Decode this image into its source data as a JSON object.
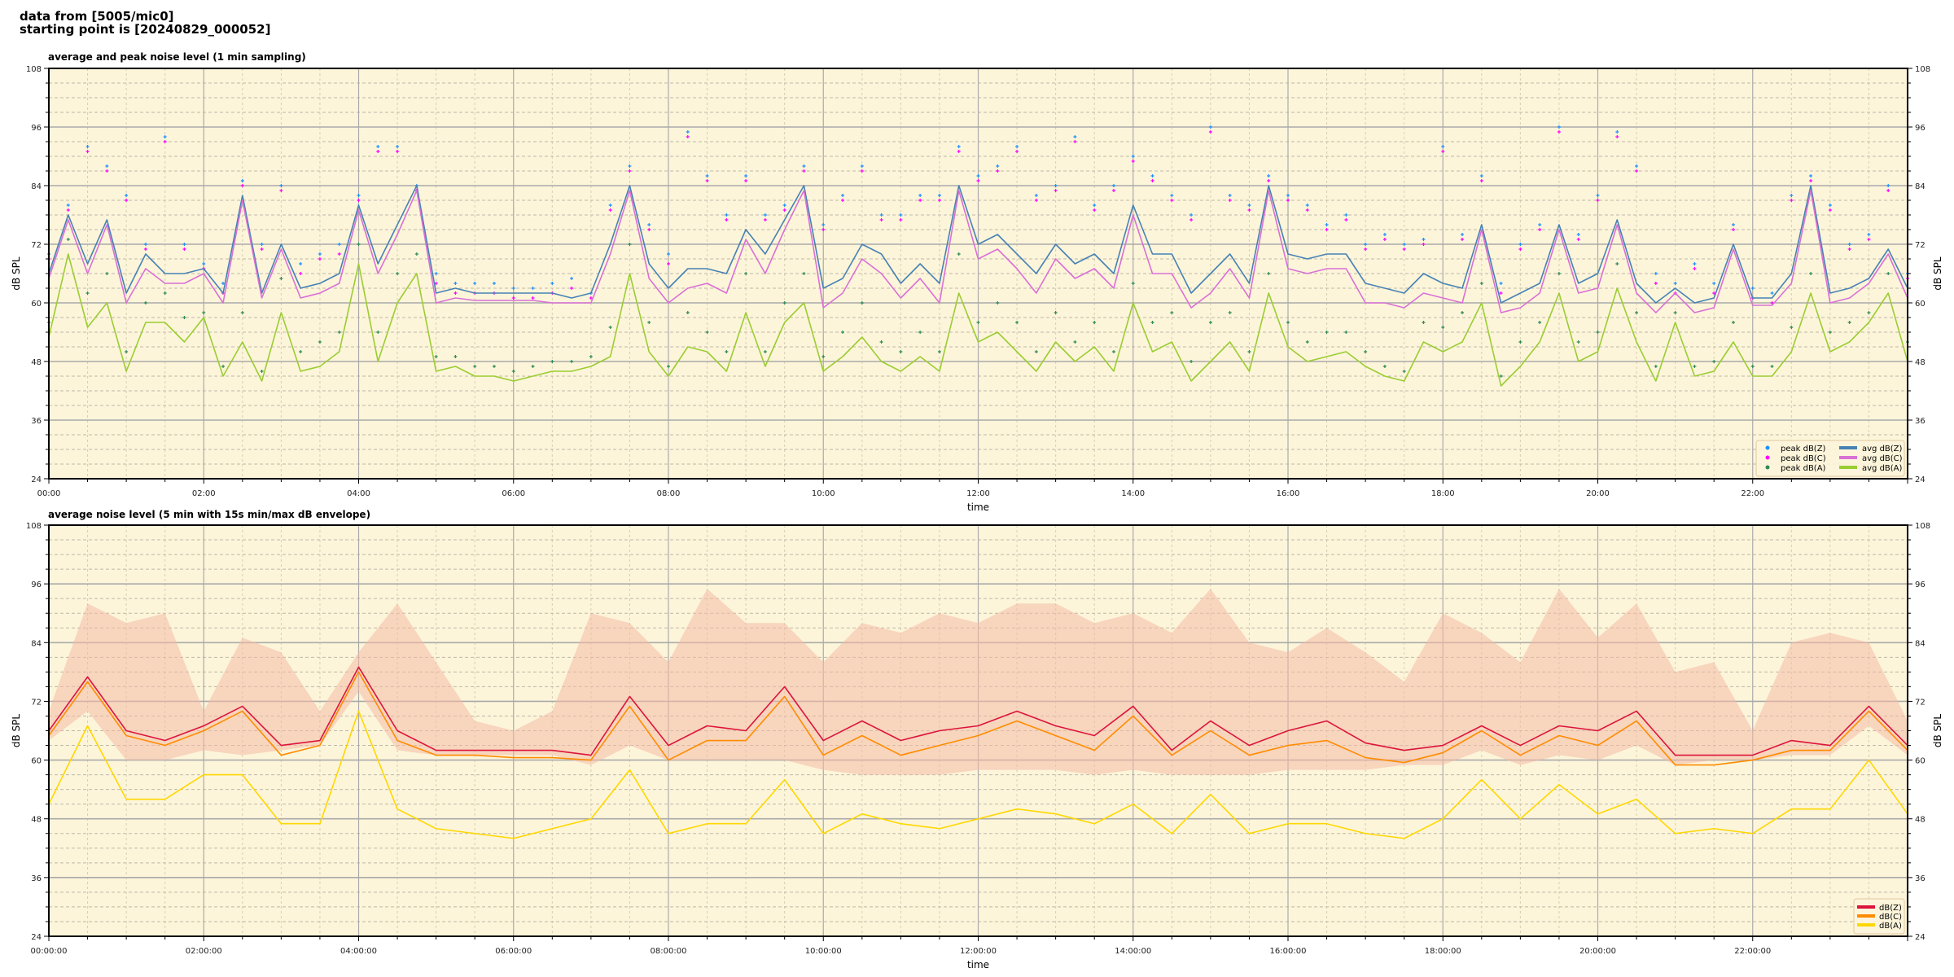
{
  "header": {
    "line1": "data from [5005/mic0]",
    "line2": "starting point is [20240829_000052]"
  },
  "chart_data": [
    {
      "type": "line",
      "title": "average and peak noise level (1 min sampling)",
      "xlabel": "time",
      "ylabel": "dB SPL",
      "ylim": [
        24,
        108
      ],
      "xlim": [
        "00:00",
        "24:00"
      ],
      "grid": true,
      "background": "#fdf5da",
      "legend_position": "bottom-right",
      "y_ticks": [
        "24",
        "36",
        "48",
        "60",
        "72",
        "84",
        "96",
        "108"
      ],
      "x_ticks": [
        "00:00",
        "02:00",
        "04:00",
        "06:00",
        "08:00",
        "10:00",
        "12:00",
        "14:00",
        "16:00",
        "18:00",
        "20:00",
        "22:00"
      ],
      "x": [
        "00:00",
        "00:15",
        "00:30",
        "00:45",
        "01:00",
        "01:15",
        "01:30",
        "01:45",
        "02:00",
        "02:15",
        "02:30",
        "02:45",
        "03:00",
        "03:15",
        "03:30",
        "03:45",
        "04:00",
        "04:15",
        "04:30",
        "04:45",
        "05:00",
        "05:15",
        "05:30",
        "05:45",
        "06:00",
        "06:15",
        "06:30",
        "06:45",
        "07:00",
        "07:15",
        "07:30",
        "07:45",
        "08:00",
        "08:15",
        "08:30",
        "08:45",
        "09:00",
        "09:15",
        "09:30",
        "09:45",
        "10:00",
        "10:15",
        "10:30",
        "10:45",
        "11:00",
        "11:15",
        "11:30",
        "11:45",
        "12:00",
        "12:15",
        "12:30",
        "12:45",
        "13:00",
        "13:15",
        "13:30",
        "13:45",
        "14:00",
        "14:15",
        "14:30",
        "14:45",
        "15:00",
        "15:15",
        "15:30",
        "15:45",
        "16:00",
        "16:15",
        "16:30",
        "16:45",
        "17:00",
        "17:15",
        "17:30",
        "17:45",
        "18:00",
        "18:15",
        "18:30",
        "18:45",
        "19:00",
        "19:15",
        "19:30",
        "19:45",
        "20:00",
        "20:15",
        "20:30",
        "20:45",
        "21:00",
        "21:15",
        "21:30",
        "21:45",
        "22:00",
        "22:15",
        "22:30",
        "22:45",
        "23:00",
        "23:15",
        "23:30",
        "23:45",
        "24:00"
      ],
      "series": [
        {
          "name": "peak dB(Z)",
          "kind": "marker",
          "color": "#1e90ff",
          "values": [
            70,
            80,
            92,
            88,
            82,
            72,
            94,
            72,
            68,
            64,
            85,
            72,
            84,
            68,
            70,
            72,
            82,
            92,
            92,
            84,
            66,
            64,
            64,
            64,
            63,
            63,
            64,
            65,
            62,
            80,
            88,
            76,
            70,
            95,
            86,
            78,
            86,
            78,
            80,
            88,
            76,
            82,
            88,
            78,
            78,
            82,
            82,
            92,
            86,
            88,
            92,
            82,
            84,
            94,
            80,
            84,
            90,
            86,
            82,
            78,
            96,
            82,
            80,
            86,
            82,
            80,
            76,
            78,
            72,
            74,
            72,
            73,
            92,
            74,
            86,
            64,
            72,
            76,
            96,
            74,
            82,
            95,
            88,
            66,
            64,
            68,
            64,
            76,
            63,
            62,
            82,
            86,
            80,
            72,
            74,
            84,
            66
          ]
        },
        {
          "name": "peak dB(C)",
          "kind": "marker",
          "color": "#ff00ff",
          "values": [
            69,
            79,
            91,
            87,
            81,
            71,
            93,
            71,
            67,
            62,
            84,
            71,
            83,
            66,
            69,
            70,
            81,
            91,
            91,
            83,
            64,
            62,
            62,
            62,
            61,
            61,
            62,
            63,
            61,
            79,
            87,
            75,
            68,
            94,
            85,
            77,
            85,
            77,
            79,
            87,
            75,
            81,
            87,
            77,
            77,
            81,
            81,
            91,
            85,
            87,
            91,
            81,
            83,
            93,
            79,
            83,
            89,
            85,
            81,
            77,
            95,
            81,
            79,
            85,
            81,
            79,
            75,
            77,
            71,
            73,
            71,
            72,
            91,
            73,
            85,
            62,
            71,
            75,
            95,
            73,
            81,
            94,
            87,
            64,
            62,
            67,
            62,
            75,
            61,
            60,
            81,
            85,
            79,
            71,
            73,
            83,
            65
          ]
        },
        {
          "name": "peak dB(A)",
          "kind": "marker",
          "color": "#2e8b57",
          "values": [
            56,
            73,
            62,
            66,
            50,
            60,
            62,
            57,
            58,
            47,
            58,
            46,
            65,
            50,
            52,
            54,
            72,
            54,
            66,
            70,
            49,
            49,
            47,
            47,
            46,
            47,
            48,
            48,
            49,
            55,
            72,
            56,
            47,
            58,
            54,
            50,
            66,
            50,
            60,
            66,
            49,
            54,
            60,
            52,
            50,
            54,
            50,
            70,
            56,
            60,
            56,
            50,
            58,
            52,
            56,
            50,
            64,
            56,
            58,
            48,
            56,
            58,
            50,
            66,
            56,
            52,
            54,
            54,
            50,
            47,
            46,
            56,
            55,
            58,
            64,
            45,
            52,
            56,
            66,
            52,
            54,
            68,
            58,
            47,
            58,
            47,
            48,
            56,
            47,
            47,
            55,
            66,
            54,
            56,
            58,
            66,
            52
          ]
        },
        {
          "name": "avg dB(Z)",
          "kind": "line",
          "color": "#4682b4",
          "values": [
            66,
            78,
            68,
            77,
            62,
            70,
            66,
            66,
            67,
            62,
            82,
            62,
            72,
            63,
            64,
            66,
            80,
            68,
            76,
            84,
            62,
            63,
            62,
            62,
            62,
            62,
            62,
            61,
            62,
            72,
            84,
            68,
            63,
            67,
            67,
            66,
            75,
            70,
            77,
            84,
            63,
            65,
            72,
            70,
            64,
            68,
            64,
            84,
            72,
            74,
            70,
            66,
            72,
            68,
            70,
            66,
            80,
            70,
            70,
            62,
            66,
            70,
            64,
            84,
            70,
            69,
            70,
            70,
            64,
            63,
            62,
            66,
            64,
            63,
            76,
            60,
            62,
            64,
            76,
            64,
            66,
            77,
            64,
            60,
            63,
            60,
            61,
            72,
            61,
            61,
            66,
            84,
            62,
            63,
            65,
            71,
            63
          ]
        },
        {
          "name": "avg dB(C)",
          "kind": "line",
          "color": "#da70d6",
          "values": [
            65,
            77,
            66,
            76,
            60,
            67,
            64,
            64,
            66,
            60,
            81,
            61,
            71,
            61,
            62,
            64,
            79,
            66,
            74,
            83,
            60,
            61,
            60.5,
            60.5,
            60.5,
            60.5,
            60,
            60,
            60,
            70,
            83,
            65,
            60,
            63,
            64,
            62,
            73,
            66,
            75,
            83,
            59,
            62,
            69,
            66,
            61,
            65,
            60,
            83,
            69,
            71,
            67,
            62,
            69,
            65,
            67,
            63,
            78,
            66,
            66,
            59,
            62,
            67,
            61,
            83,
            67,
            66,
            67,
            67,
            60,
            60,
            59,
            62,
            61,
            60,
            75,
            58,
            59,
            62,
            75,
            62,
            63,
            76,
            62,
            58,
            62,
            58,
            59,
            71,
            59.5,
            59.5,
            64,
            83,
            60,
            61,
            64,
            70,
            61
          ]
        },
        {
          "name": "avg dB(A)",
          "kind": "line",
          "color": "#9acd32",
          "values": [
            53,
            70,
            55,
            60,
            46,
            56,
            56,
            52,
            57,
            45,
            52,
            44,
            58,
            46,
            47,
            50,
            68,
            48,
            60,
            66,
            46,
            47,
            45,
            45,
            44,
            45,
            46,
            46,
            47,
            49,
            66,
            50,
            45,
            51,
            50,
            46,
            58,
            47,
            56,
            60,
            46,
            49,
            53,
            48,
            46,
            49,
            46,
            62,
            52,
            54,
            50,
            46,
            52,
            48,
            51,
            46,
            60,
            50,
            52,
            44,
            48,
            52,
            46,
            62,
            51,
            48,
            49,
            50,
            47,
            45,
            44,
            52,
            50,
            52,
            60,
            43,
            47,
            52,
            62,
            48,
            50,
            63,
            52,
            44,
            56,
            45,
            46,
            52,
            45,
            45,
            50,
            62,
            50,
            52,
            56,
            62,
            48
          ]
        }
      ]
    },
    {
      "type": "line",
      "title": "average noise level (5 min with 15s min/max dB envelope)",
      "xlabel": "time",
      "ylabel": "dB SPL",
      "ylim": [
        24,
        108
      ],
      "xlim": [
        "00:00:00",
        "24:00:00"
      ],
      "grid": true,
      "background": "#fdf5da",
      "legend_position": "bottom-right",
      "y_ticks": [
        "24",
        "36",
        "48",
        "60",
        "72",
        "84",
        "96",
        "108"
      ],
      "x_ticks": [
        "00:00:00",
        "02:00:00",
        "04:00:00",
        "06:00:00",
        "08:00:00",
        "10:00:00",
        "12:00:00",
        "14:00:00",
        "16:00:00",
        "18:00:00",
        "20:00:00",
        "22:00:00"
      ],
      "x": [
        "00:00",
        "00:30",
        "01:00",
        "01:30",
        "02:00",
        "02:30",
        "03:00",
        "03:30",
        "04:00",
        "04:30",
        "05:00",
        "05:30",
        "06:00",
        "06:30",
        "07:00",
        "07:30",
        "08:00",
        "08:30",
        "09:00",
        "09:30",
        "10:00",
        "10:30",
        "11:00",
        "11:30",
        "12:00",
        "12:30",
        "13:00",
        "13:30",
        "14:00",
        "14:30",
        "15:00",
        "15:30",
        "16:00",
        "16:30",
        "17:00",
        "17:30",
        "18:00",
        "18:30",
        "19:00",
        "19:30",
        "20:00",
        "20:30",
        "21:00",
        "21:30",
        "22:00",
        "22:30",
        "23:00",
        "23:30",
        "24:00"
      ],
      "envelope": {
        "color": "#f4b9a6",
        "max": [
          70,
          92,
          88,
          90,
          70,
          85,
          82,
          70,
          82,
          92,
          80,
          68,
          66,
          70,
          90,
          88,
          80,
          95,
          88,
          88,
          80,
          88,
          86,
          90,
          88,
          92,
          92,
          88,
          90,
          86,
          95,
          84,
          82,
          87,
          82,
          76,
          90,
          86,
          80,
          95,
          85,
          92,
          78,
          80,
          66,
          84,
          86,
          84,
          68
        ],
        "min": [
          64,
          70,
          60,
          60,
          62,
          61,
          62,
          63,
          74,
          62,
          61,
          61,
          61,
          61,
          59,
          63,
          60,
          60,
          60,
          60,
          58,
          57,
          57,
          57,
          58,
          58,
          58,
          57,
          58,
          57,
          57,
          57,
          58,
          58,
          58,
          59,
          59,
          62,
          59,
          61,
          60,
          63,
          59,
          60,
          60,
          61,
          61,
          67,
          61
        ]
      },
      "series": [
        {
          "name": "dB(Z)",
          "color": "#dc143c",
          "values": [
            66,
            77,
            66,
            64,
            67,
            71,
            63,
            64,
            79,
            66,
            62,
            62,
            62,
            62,
            61,
            73,
            63,
            67,
            66,
            75,
            64,
            68,
            64,
            66,
            67,
            70,
            67,
            65,
            71,
            62,
            68,
            63,
            66,
            68,
            63.5,
            62,
            63,
            67,
            63,
            67,
            66,
            70,
            61,
            61,
            61,
            64,
            63,
            71,
            63
          ]
        },
        {
          "name": "dB(C)",
          "color": "#ff8c00",
          "values": [
            65,
            76,
            65,
            63,
            66,
            70,
            61,
            63,
            78,
            64,
            61,
            61,
            60.5,
            60.5,
            60,
            71,
            60,
            64,
            64,
            73,
            61,
            65,
            61,
            63,
            65,
            68,
            65,
            62,
            69,
            61,
            66,
            61,
            63,
            64,
            60.5,
            59.5,
            61.5,
            66,
            61,
            65,
            63,
            68,
            59,
            59,
            60,
            62,
            62,
            70,
            62
          ]
        },
        {
          "name": "dB(A)",
          "color": "#ffd700",
          "values": [
            51,
            67,
            52,
            52,
            57,
            57,
            47,
            47,
            70,
            50,
            46,
            45,
            44,
            46,
            48,
            58,
            45,
            47,
            47,
            56,
            45,
            49,
            47,
            46,
            48,
            50,
            49,
            47,
            51,
            45,
            53,
            45,
            47,
            47,
            45,
            44,
            48,
            56,
            48,
            55,
            49,
            52,
            45,
            46,
            45,
            50,
            50,
            60,
            49
          ]
        }
      ]
    }
  ]
}
